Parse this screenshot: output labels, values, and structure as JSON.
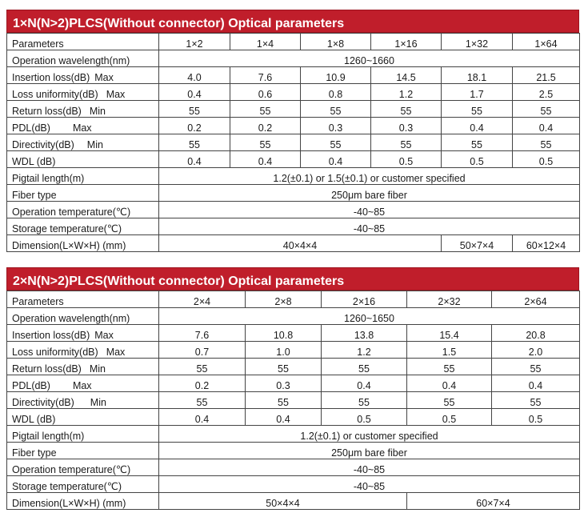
{
  "table1": {
    "title": "1×N(N>2)PLCS(Without connector) Optical parameters",
    "header_label": "Parameters",
    "columns": [
      "1×2",
      "1×4",
      "1×8",
      "1×16",
      "1×32",
      "1×64"
    ],
    "rows": {
      "wavelength": {
        "label": "Operation wavelength(nm)",
        "value": "1260~1660"
      },
      "insertion_loss": {
        "label": "Insertion loss(dB)",
        "qual": "Max",
        "values": [
          "4.0",
          "7.6",
          "10.9",
          "14.5",
          "18.1",
          "21.5"
        ]
      },
      "loss_uniformity": {
        "label": "Loss uniformity(dB)",
        "qual": "Max",
        "values": [
          "0.4",
          "0.6",
          "0.8",
          "1.2",
          "1.7",
          "2.5"
        ]
      },
      "return_loss": {
        "label": "Return loss(dB)",
        "qual": "Min",
        "values": [
          "55",
          "55",
          "55",
          "55",
          "55",
          "55"
        ]
      },
      "pdl": {
        "label": "PDL(dB)",
        "qual": "Max",
        "values": [
          "0.2",
          "0.2",
          "0.3",
          "0.3",
          "0.4",
          "0.4"
        ]
      },
      "directivity": {
        "label": "Directivity(dB)",
        "qual": "Min",
        "values": [
          "55",
          "55",
          "55",
          "55",
          "55",
          "55"
        ]
      },
      "wdl": {
        "label": "WDL (dB)",
        "values": [
          "0.4",
          "0.4",
          "0.4",
          "0.5",
          "0.5",
          "0.5"
        ]
      },
      "pigtail": {
        "label": "Pigtail length(m)",
        "value": "1.2(±0.1) or 1.5(±0.1) or customer specified"
      },
      "fiber": {
        "label": "Fiber type",
        "value": "250μm bare fiber"
      },
      "op_temp": {
        "label": "Operation temperature(℃)",
        "value": "-40~85"
      },
      "storage_temp": {
        "label": "Storage temperature(℃)",
        "value": "-40~85"
      },
      "dimension": {
        "label": "Dimension(L×W×H) (mm)",
        "values": [
          "40×4×4",
          "50×7×4",
          "60×12×4"
        ]
      }
    }
  },
  "table2": {
    "title": "2×N(N>2)PLCS(Without connector) Optical parameters",
    "header_label": "Parameters",
    "columns": [
      "2×4",
      "2×8",
      "2×16",
      "2×32",
      "2×64"
    ],
    "rows": {
      "wavelength": {
        "label": "Operation wavelength(nm)",
        "value": "1260~1650"
      },
      "insertion_loss": {
        "label": "Insertion loss(dB)",
        "qual": "Max",
        "values": [
          "7.6",
          "10.8",
          "13.8",
          "15.4",
          "20.8"
        ]
      },
      "loss_uniformity": {
        "label": "Loss uniformity(dB)",
        "qual": "Max",
        "values": [
          "0.7",
          "1.0",
          "1.2",
          "1.5",
          "2.0"
        ]
      },
      "return_loss": {
        "label": "Return loss(dB)",
        "qual": "Min",
        "values": [
          "55",
          "55",
          "55",
          "55",
          "55"
        ]
      },
      "pdl": {
        "label": "PDL(dB)",
        "qual": "Max",
        "values": [
          "0.2",
          "0.3",
          "0.4",
          "0.4",
          "0.4"
        ]
      },
      "directivity": {
        "label": "Directivity(dB)",
        "qual": "Min",
        "values": [
          "55",
          "55",
          "55",
          "55",
          "55"
        ]
      },
      "wdl": {
        "label": "WDL (dB)",
        "values": [
          "0.4",
          "0.4",
          "0.5",
          "0.5",
          "0.5"
        ]
      },
      "pigtail": {
        "label": "Pigtail length(m)",
        "value": "1.2(±0.1) or customer specified"
      },
      "fiber": {
        "label": "Fiber type",
        "value": "250μm bare fiber"
      },
      "op_temp": {
        "label": "Operation temperature(℃)",
        "value": "-40~85"
      },
      "storage_temp": {
        "label": "Storage temperature(℃)",
        "value": "-40~85"
      },
      "dimension": {
        "label": "Dimension(L×W×H) (mm)",
        "values": [
          "50×4×4",
          "60×7×4"
        ]
      }
    }
  },
  "colors": {
    "banner": "#c01e2b",
    "banner_text": "#ffffff",
    "border": "#444444"
  }
}
